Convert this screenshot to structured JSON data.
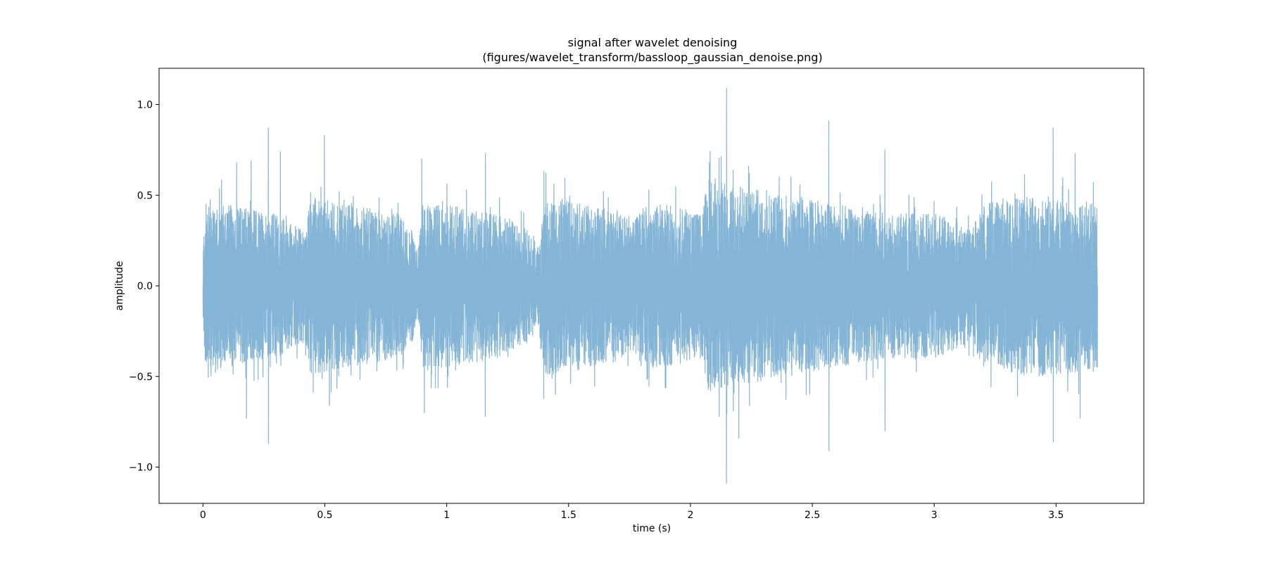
{
  "chart_data": {
    "type": "line",
    "title": "signal after wavelet denoising",
    "subtitle": "(figures/wavelet_transform/bassloop_gaussian_denoise.png)",
    "xlabel": "time (s)",
    "ylabel": "amplitude",
    "xlim": [
      -0.18,
      3.86
    ],
    "ylim": [
      -1.2,
      1.2
    ],
    "xticks": [
      0,
      0.5,
      1,
      1.5,
      2,
      2.5,
      3,
      3.5
    ],
    "xtick_labels": [
      "0",
      "0.5",
      "1",
      "1.5",
      "2",
      "2.5",
      "3",
      "3.5"
    ],
    "yticks": [
      -1.0,
      -0.5,
      0.0,
      0.5,
      1.0
    ],
    "ytick_labels": [
      "−1.0",
      "−0.5",
      "0.0",
      "0.5",
      "1.0"
    ],
    "grid": false,
    "series": [
      {
        "color": "#1f77b4",
        "opacity": 0.55,
        "duration": 3.67,
        "envelope": {
          "t": [
            0.0,
            0.01,
            0.03,
            0.1,
            0.2,
            0.3,
            0.42,
            0.44,
            0.47,
            0.6,
            0.8,
            0.86,
            0.88,
            0.9,
            1.0,
            1.2,
            1.35,
            1.38,
            1.4,
            1.5,
            1.7,
            1.76,
            1.8,
            1.9,
            2.05,
            2.07,
            2.1,
            2.2,
            2.4,
            2.6,
            2.7,
            2.8,
            3.0,
            3.1,
            3.15,
            3.2,
            3.4,
            3.6,
            3.67
          ],
          "amp": [
            0.2,
            0.45,
            0.5,
            0.45,
            0.42,
            0.4,
            0.3,
            0.5,
            0.48,
            0.45,
            0.4,
            0.3,
            0.15,
            0.45,
            0.45,
            0.4,
            0.3,
            0.2,
            0.5,
            0.47,
            0.42,
            0.35,
            0.45,
            0.45,
            0.4,
            0.6,
            0.58,
            0.55,
            0.5,
            0.45,
            0.42,
            0.4,
            0.4,
            0.35,
            0.3,
            0.45,
            0.5,
            0.48,
            0.45
          ]
        },
        "peaks": [
          {
            "t": 0.14,
            "y": 0.68
          },
          {
            "t": 0.18,
            "y": -0.73
          },
          {
            "t": 0.2,
            "y": 0.69
          },
          {
            "t": 0.27,
            "y": 0.87
          },
          {
            "t": 0.27,
            "y": -0.87
          },
          {
            "t": 0.32,
            "y": 0.74
          },
          {
            "t": 0.5,
            "y": 0.83
          },
          {
            "t": 0.52,
            "y": -0.66
          },
          {
            "t": 0.9,
            "y": 0.7
          },
          {
            "t": 0.91,
            "y": -0.7
          },
          {
            "t": 1.16,
            "y": 0.73
          },
          {
            "t": 1.16,
            "y": -0.72
          },
          {
            "t": 1.4,
            "y": 0.63
          },
          {
            "t": 1.4,
            "y": -0.62
          },
          {
            "t": 2.08,
            "y": 0.68
          },
          {
            "t": 2.12,
            "y": -0.72
          },
          {
            "t": 2.15,
            "y": 1.09
          },
          {
            "t": 2.15,
            "y": -1.09
          },
          {
            "t": 2.2,
            "y": -0.84
          },
          {
            "t": 2.57,
            "y": 0.91
          },
          {
            "t": 2.57,
            "y": -0.91
          },
          {
            "t": 2.8,
            "y": 0.75
          },
          {
            "t": 2.8,
            "y": -0.8
          },
          {
            "t": 3.49,
            "y": 0.87
          },
          {
            "t": 3.49,
            "y": -0.86
          },
          {
            "t": 3.58,
            "y": 0.73
          },
          {
            "t": 3.6,
            "y": -0.73
          }
        ]
      }
    ]
  }
}
